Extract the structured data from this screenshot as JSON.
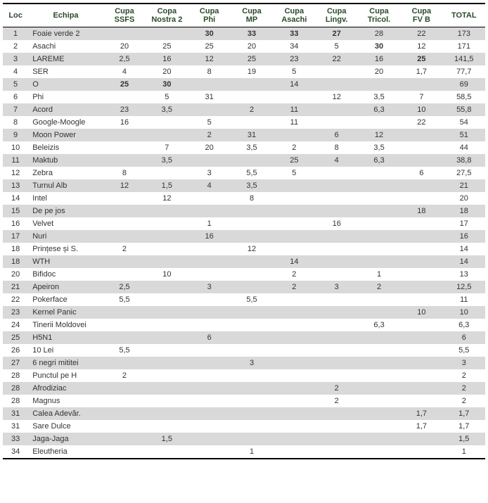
{
  "columns": [
    {
      "key": "loc",
      "label": "Loc"
    },
    {
      "key": "echipa",
      "label": "Echipa"
    },
    {
      "key": "c1",
      "label": "Cupa SSFS"
    },
    {
      "key": "c2",
      "label": "Copa Nostra 2"
    },
    {
      "key": "c3",
      "label": "Cupa Phi"
    },
    {
      "key": "c4",
      "label": "Cupa MP"
    },
    {
      "key": "c5",
      "label": "Cupa Asachi"
    },
    {
      "key": "c6",
      "label": "Cupa Lingv."
    },
    {
      "key": "c7",
      "label": "Cupa Tricol."
    },
    {
      "key": "c8",
      "label": "Cupa FV B"
    },
    {
      "key": "total",
      "label": "TOTAL"
    }
  ],
  "rows": [
    {
      "loc": "1",
      "echipa": "Foaie verde 2",
      "c1": "",
      "c2": "",
      "c3": "30",
      "c4": "33",
      "c5": "33",
      "c6": "27",
      "c7": "28",
      "c8": "22",
      "total": "173",
      "bold": [
        "c3",
        "c4",
        "c5",
        "c6"
      ]
    },
    {
      "loc": "2",
      "echipa": "Asachi",
      "c1": "20",
      "c2": "25",
      "c3": "25",
      "c4": "20",
      "c5": "34",
      "c6": "5",
      "c7": "30",
      "c8": "12",
      "total": "171",
      "bold": [
        "c7"
      ]
    },
    {
      "loc": "3",
      "echipa": "LAREME",
      "c1": "2,5",
      "c2": "16",
      "c3": "12",
      "c4": "25",
      "c5": "23",
      "c6": "22",
      "c7": "16",
      "c8": "25",
      "total": "141,5",
      "bold": [
        "c8"
      ]
    },
    {
      "loc": "4",
      "echipa": "SER",
      "c1": "4",
      "c2": "20",
      "c3": "8",
      "c4": "19",
      "c5": "5",
      "c6": "",
      "c7": "20",
      "c8": "1,7",
      "total": "77,7",
      "bold": []
    },
    {
      "loc": "5",
      "echipa": "O",
      "c1": "25",
      "c2": "30",
      "c3": "",
      "c4": "",
      "c5": "14",
      "c6": "",
      "c7": "",
      "c8": "",
      "total": "69",
      "bold": [
        "c1",
        "c2"
      ]
    },
    {
      "loc": "6",
      "echipa": "Phi",
      "c1": "",
      "c2": "5",
      "c3": "31",
      "c4": "",
      "c5": "",
      "c6": "12",
      "c7": "3,5",
      "c8": "7",
      "total": "58,5",
      "bold": []
    },
    {
      "loc": "7",
      "echipa": "Acord",
      "c1": "23",
      "c2": "3,5",
      "c3": "",
      "c4": "2",
      "c5": "11",
      "c6": "",
      "c7": "6,3",
      "c8": "10",
      "total": "55,8",
      "bold": []
    },
    {
      "loc": "8",
      "echipa": "Google-Moogle",
      "c1": "16",
      "c2": "",
      "c3": "5",
      "c4": "",
      "c5": "11",
      "c6": "",
      "c7": "",
      "c8": "22",
      "total": "54",
      "bold": []
    },
    {
      "loc": "9",
      "echipa": "Moon Power",
      "c1": "",
      "c2": "",
      "c3": "2",
      "c4": "31",
      "c5": "",
      "c6": "6",
      "c7": "12",
      "c8": "",
      "total": "51",
      "bold": []
    },
    {
      "loc": "10",
      "echipa": "Beleizis",
      "c1": "",
      "c2": "7",
      "c3": "20",
      "c4": "3,5",
      "c5": "2",
      "c6": "8",
      "c7": "3,5",
      "c8": "",
      "total": "44",
      "bold": []
    },
    {
      "loc": "11",
      "echipa": "Maktub",
      "c1": "",
      "c2": "3,5",
      "c3": "",
      "c4": "",
      "c5": "25",
      "c6": "4",
      "c7": "6,3",
      "c8": "",
      "total": "38,8",
      "bold": []
    },
    {
      "loc": "12",
      "echipa": "Zebra",
      "c1": "8",
      "c2": "",
      "c3": "3",
      "c4": "5,5",
      "c5": "5",
      "c6": "",
      "c7": "",
      "c8": "6",
      "total": "27,5",
      "bold": []
    },
    {
      "loc": "13",
      "echipa": "Turnul Alb",
      "c1": "12",
      "c2": "1,5",
      "c3": "4",
      "c4": "3,5",
      "c5": "",
      "c6": "",
      "c7": "",
      "c8": "",
      "total": "21",
      "bold": []
    },
    {
      "loc": "14",
      "echipa": "Intel",
      "c1": "",
      "c2": "12",
      "c3": "",
      "c4": "8",
      "c5": "",
      "c6": "",
      "c7": "",
      "c8": "",
      "total": "20",
      "bold": []
    },
    {
      "loc": "15",
      "echipa": "De pe jos",
      "c1": "",
      "c2": "",
      "c3": "",
      "c4": "",
      "c5": "",
      "c6": "",
      "c7": "",
      "c8": "18",
      "total": "18",
      "bold": []
    },
    {
      "loc": "16",
      "echipa": "Velvet",
      "c1": "",
      "c2": "",
      "c3": "1",
      "c4": "",
      "c5": "",
      "c6": "16",
      "c7": "",
      "c8": "",
      "total": "17",
      "bold": []
    },
    {
      "loc": "17",
      "echipa": "Nuri",
      "c1": "",
      "c2": "",
      "c3": "16",
      "c4": "",
      "c5": "",
      "c6": "",
      "c7": "",
      "c8": "",
      "total": "16",
      "bold": []
    },
    {
      "loc": "18",
      "echipa": "Prințese și S.",
      "c1": "2",
      "c2": "",
      "c3": "",
      "c4": "12",
      "c5": "",
      "c6": "",
      "c7": "",
      "c8": "",
      "total": "14",
      "bold": []
    },
    {
      "loc": "18",
      "echipa": "WTH",
      "c1": "",
      "c2": "",
      "c3": "",
      "c4": "",
      "c5": "14",
      "c6": "",
      "c7": "",
      "c8": "",
      "total": "14",
      "bold": []
    },
    {
      "loc": "20",
      "echipa": "Bifidoc",
      "c1": "",
      "c2": "10",
      "c3": "",
      "c4": "",
      "c5": "2",
      "c6": "",
      "c7": "1",
      "c8": "",
      "total": "13",
      "bold": []
    },
    {
      "loc": "21",
      "echipa": "Apeiron",
      "c1": "2,5",
      "c2": "",
      "c3": "3",
      "c4": "",
      "c5": "2",
      "c6": "3",
      "c7": "2",
      "c8": "",
      "total": "12,5",
      "bold": []
    },
    {
      "loc": "22",
      "echipa": "Pokerface",
      "c1": "5,5",
      "c2": "",
      "c3": "",
      "c4": "5,5",
      "c5": "",
      "c6": "",
      "c7": "",
      "c8": "",
      "total": "11",
      "bold": []
    },
    {
      "loc": "23",
      "echipa": "Kernel Panic",
      "c1": "",
      "c2": "",
      "c3": "",
      "c4": "",
      "c5": "",
      "c6": "",
      "c7": "",
      "c8": "10",
      "total": "10",
      "bold": []
    },
    {
      "loc": "24",
      "echipa": "Tinerii Moldovei",
      "c1": "",
      "c2": "",
      "c3": "",
      "c4": "",
      "c5": "",
      "c6": "",
      "c7": "6,3",
      "c8": "",
      "total": "6,3",
      "bold": []
    },
    {
      "loc": "25",
      "echipa": "H5N1",
      "c1": "",
      "c2": "",
      "c3": "6",
      "c4": "",
      "c5": "",
      "c6": "",
      "c7": "",
      "c8": "",
      "total": "6",
      "bold": []
    },
    {
      "loc": "26",
      "echipa": "10 Lei",
      "c1": "5,5",
      "c2": "",
      "c3": "",
      "c4": "",
      "c5": "",
      "c6": "",
      "c7": "",
      "c8": "",
      "total": "5,5",
      "bold": []
    },
    {
      "loc": "27",
      "echipa": "6 negri mititei",
      "c1": "",
      "c2": "",
      "c3": "",
      "c4": "3",
      "c5": "",
      "c6": "",
      "c7": "",
      "c8": "",
      "total": "3",
      "bold": []
    },
    {
      "loc": "28",
      "echipa": "Punctul pe H",
      "c1": "2",
      "c2": "",
      "c3": "",
      "c4": "",
      "c5": "",
      "c6": "",
      "c7": "",
      "c8": "",
      "total": "2",
      "bold": []
    },
    {
      "loc": "28",
      "echipa": "Afrodiziac",
      "c1": "",
      "c2": "",
      "c3": "",
      "c4": "",
      "c5": "",
      "c6": "2",
      "c7": "",
      "c8": "",
      "total": "2",
      "bold": []
    },
    {
      "loc": "28",
      "echipa": "Magnus",
      "c1": "",
      "c2": "",
      "c3": "",
      "c4": "",
      "c5": "",
      "c6": "2",
      "c7": "",
      "c8": "",
      "total": "2",
      "bold": []
    },
    {
      "loc": "31",
      "echipa": "Calea Adevăr.",
      "c1": "",
      "c2": "",
      "c3": "",
      "c4": "",
      "c5": "",
      "c6": "",
      "c7": "",
      "c8": "1,7",
      "total": "1,7",
      "bold": []
    },
    {
      "loc": "31",
      "echipa": "Sare Dulce",
      "c1": "",
      "c2": "",
      "c3": "",
      "c4": "",
      "c5": "",
      "c6": "",
      "c7": "",
      "c8": "1,7",
      "total": "1,7",
      "bold": []
    },
    {
      "loc": "33",
      "echipa": "Jaga-Jaga",
      "c1": "",
      "c2": "1,5",
      "c3": "",
      "c4": "",
      "c5": "",
      "c6": "",
      "c7": "",
      "c8": "",
      "total": "1,5",
      "bold": []
    },
    {
      "loc": "34",
      "echipa": "Eleutheria",
      "c1": "",
      "c2": "",
      "c3": "",
      "c4": "1",
      "c5": "",
      "c6": "",
      "c7": "",
      "c8": "",
      "total": "1",
      "bold": []
    }
  ]
}
